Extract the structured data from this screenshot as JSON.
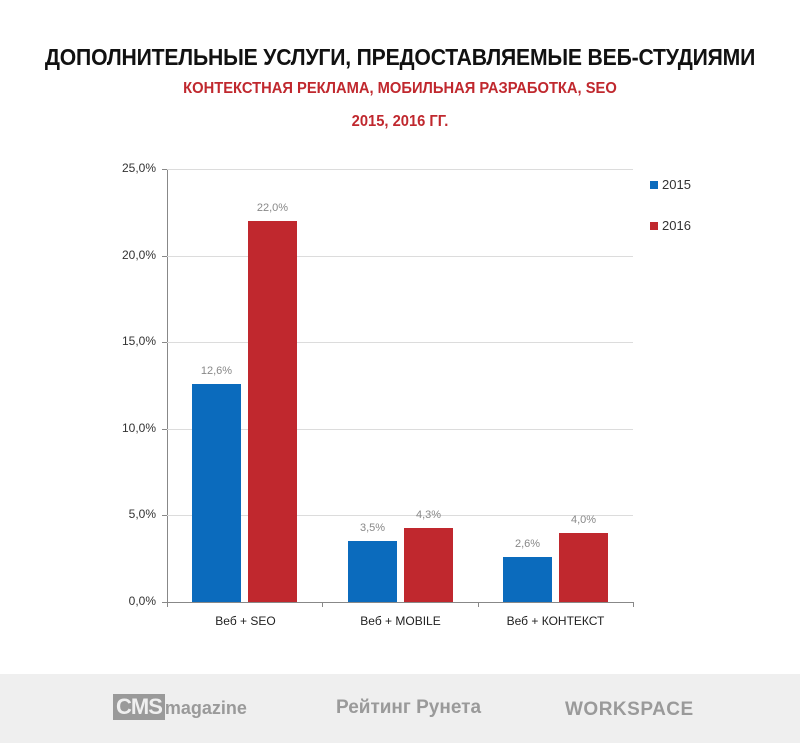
{
  "header": {
    "title": "ДОПОЛНИТЕЛЬНЫЕ УСЛУГИ, ПРЕДОСТАВЛЯЕМЫЕ ВЕБ-СТУДИЯМИ",
    "subtitle": "КОНТЕКСТНАЯ РЕКЛАМА, МОБИЛЬНАЯ РАЗРАБОТКА, SEO",
    "years": "2015, 2016 ГГ."
  },
  "colors": {
    "series_2015": "#0b6bbd",
    "series_2016": "#c0282e",
    "title": "#111111",
    "subtitle": "#c0282e"
  },
  "chart_data": {
    "type": "bar",
    "title": "ДОПОЛНИТЕЛЬНЫЕ УСЛУГИ, ПРЕДОСТАВЛЯЕМЫЕ ВЕБ-СТУДИЯМИ",
    "subtitle": "КОНТЕКСТНАЯ РЕКЛАМА, МОБИЛЬНАЯ РАЗРАБОТКА, SEO / 2015, 2016 ГГ.",
    "categories": [
      "Веб + SEO",
      "Веб + MOBILE",
      "Веб + КОНТЕКСТ"
    ],
    "series": [
      {
        "name": "2015",
        "values": [
          12.6,
          3.5,
          2.6
        ],
        "labels": [
          "12,6%",
          "3,5%",
          "2,6%"
        ]
      },
      {
        "name": "2016",
        "values": [
          22.0,
          4.3,
          4.0
        ],
        "labels": [
          "22,0%",
          "4,3%",
          "4,0%"
        ]
      }
    ],
    "xlabel": "",
    "ylabel": "",
    "ylim": [
      0,
      25
    ],
    "yticks": [
      "0,0%",
      "5,0%",
      "10,0%",
      "15,0%",
      "20,0%",
      "25,0%"
    ],
    "grid": true,
    "legend_position": "right"
  },
  "legend": [
    {
      "label": "2015"
    },
    {
      "label": "2016"
    }
  ],
  "footer": {
    "logos": [
      {
        "box": "CMS",
        "text": "magazine"
      },
      {
        "text": "Рейтинг Рунета"
      },
      {
        "text": "WORKSPACE"
      }
    ]
  }
}
